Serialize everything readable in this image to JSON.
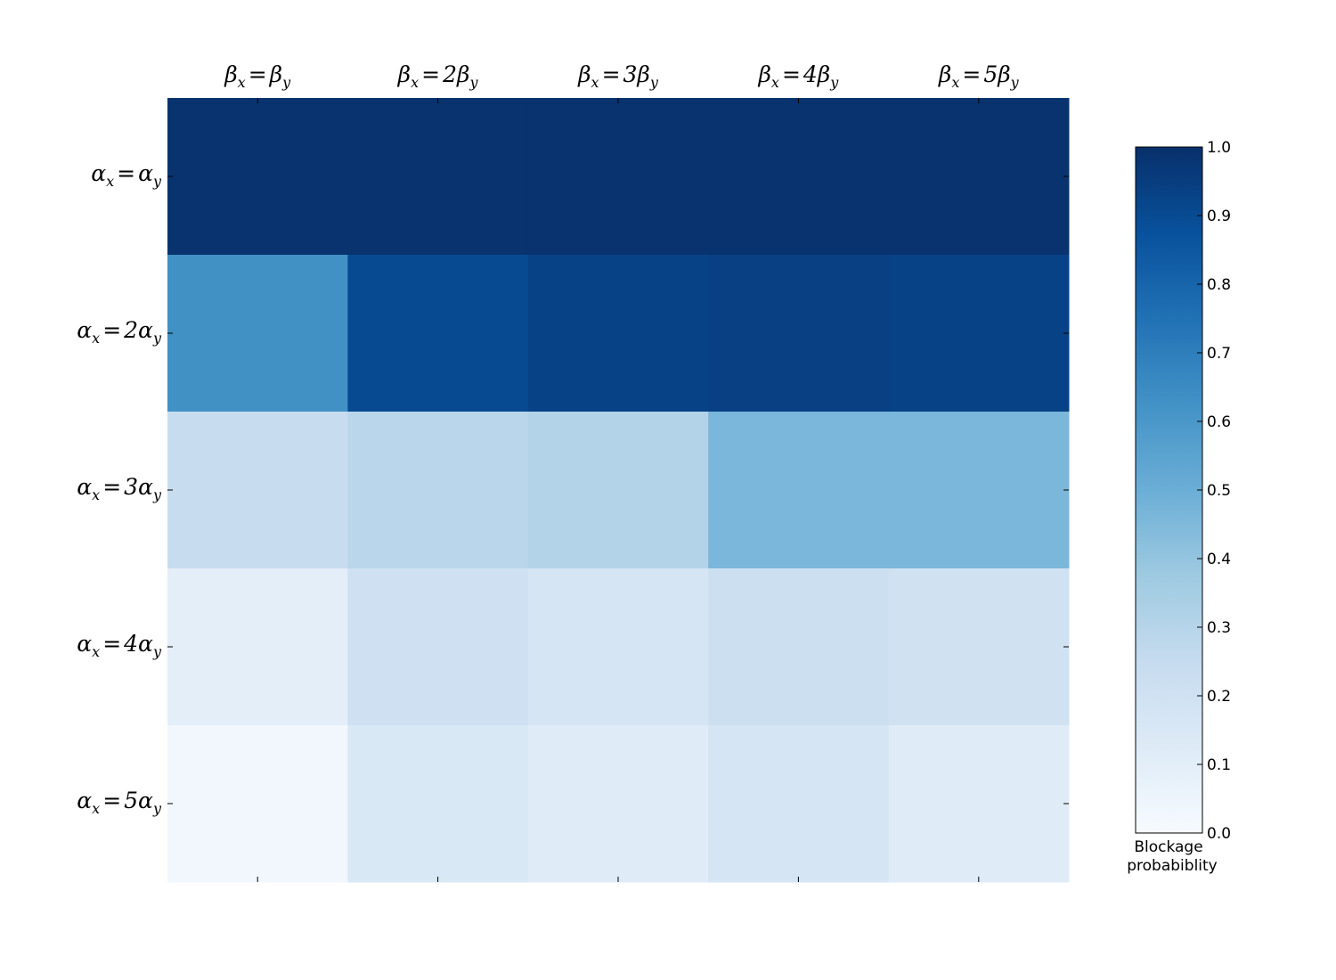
{
  "chart_data": {
    "type": "heatmap",
    "colormap": "Blues",
    "x_tick_labels": [
      {
        "lhs": "β",
        "lhs_sub": "x",
        "op": "=",
        "coef": "",
        "rhs": "β",
        "rhs_sub": "y"
      },
      {
        "lhs": "β",
        "lhs_sub": "x",
        "op": "=",
        "coef": "2",
        "rhs": "β",
        "rhs_sub": "y"
      },
      {
        "lhs": "β",
        "lhs_sub": "x",
        "op": "=",
        "coef": "3",
        "rhs": "β",
        "rhs_sub": "y"
      },
      {
        "lhs": "β",
        "lhs_sub": "x",
        "op": "=",
        "coef": "4",
        "rhs": "β",
        "rhs_sub": "y"
      },
      {
        "lhs": "β",
        "lhs_sub": "x",
        "op": "=",
        "coef": "5",
        "rhs": "β",
        "rhs_sub": "y"
      }
    ],
    "y_tick_labels": [
      {
        "lhs": "α",
        "lhs_sub": "x",
        "op": "=",
        "coef": "",
        "rhs": "α",
        "rhs_sub": "y"
      },
      {
        "lhs": "α",
        "lhs_sub": "x",
        "op": "=",
        "coef": "2",
        "rhs": "α",
        "rhs_sub": "y"
      },
      {
        "lhs": "α",
        "lhs_sub": "x",
        "op": "=",
        "coef": "3",
        "rhs": "α",
        "rhs_sub": "y"
      },
      {
        "lhs": "α",
        "lhs_sub": "x",
        "op": "=",
        "coef": "4",
        "rhs": "α",
        "rhs_sub": "y"
      },
      {
        "lhs": "α",
        "lhs_sub": "x",
        "op": "=",
        "coef": "5",
        "rhs": "α",
        "rhs_sub": "y"
      }
    ],
    "values": [
      [
        0.99,
        0.99,
        0.99,
        0.99,
        0.99
      ],
      [
        0.63,
        0.9,
        0.93,
        0.94,
        0.93
      ],
      [
        0.24,
        0.29,
        0.31,
        0.46,
        0.46
      ],
      [
        0.1,
        0.21,
        0.17,
        0.22,
        0.2
      ],
      [
        0.03,
        0.15,
        0.12,
        0.17,
        0.12
      ]
    ],
    "colorbar": {
      "label_lines": [
        "Blockage",
        "probabiblity"
      ],
      "range": [
        0.0,
        1.0
      ],
      "ticks": [
        "0.0",
        "0.1",
        "0.2",
        "0.3",
        "0.4",
        "0.5",
        "0.6",
        "0.7",
        "0.8",
        "0.9",
        "1.0"
      ]
    }
  }
}
